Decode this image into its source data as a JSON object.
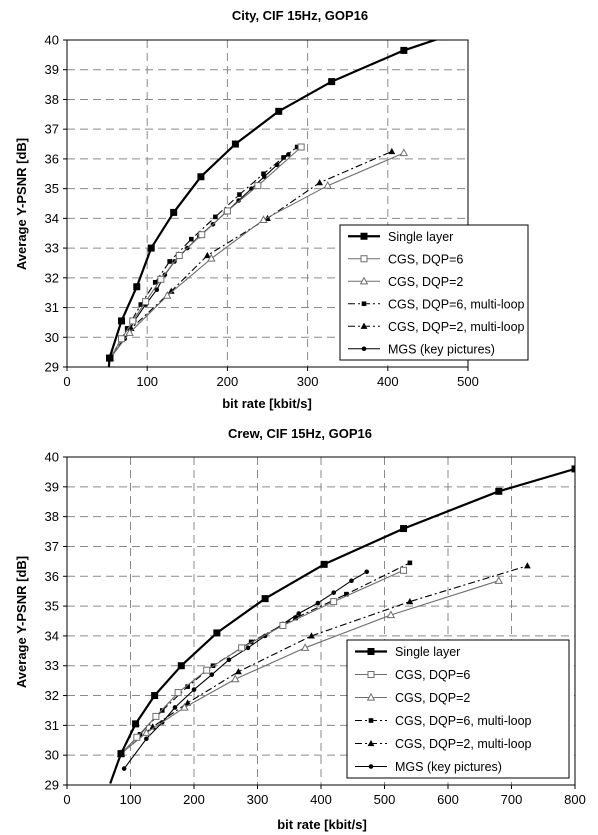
{
  "chart_data": [
    {
      "type": "line",
      "title": "City, CIF 15Hz, GOP16",
      "xlabel": "bit rate [kbit/s]",
      "ylabel": "Average Y-PSNR [dB]",
      "xlim": [
        0,
        500
      ],
      "ylim": [
        29,
        40
      ],
      "xticks": [
        "0",
        "100",
        "200",
        "300",
        "400",
        "500"
      ],
      "yticks": [
        "29",
        "30",
        "31",
        "32",
        "33",
        "34",
        "35",
        "36",
        "37",
        "38",
        "39",
        "40"
      ],
      "grid": true,
      "legend_position": "lower-right",
      "series": [
        {
          "name": "Single layer",
          "marker": "square-filled",
          "line": "solid-thick",
          "color": "#000000",
          "x": [
            52,
            53,
            68,
            87,
            105,
            133,
            167,
            210,
            264,
            330,
            420,
            470
          ],
          "y": [
            28.9,
            29.3,
            30.55,
            31.7,
            33.0,
            34.2,
            35.4,
            36.5,
            37.6,
            38.6,
            39.65,
            40.1
          ],
          "marker_count": 11
        },
        {
          "name": "CGS, DQP=6",
          "marker": "square-open",
          "line": "solid",
          "color": "#6e6e6e",
          "x": [
            54,
            68,
            82,
            98,
            117,
            140,
            168,
            200,
            238,
            292
          ],
          "y": [
            29.3,
            29.95,
            30.55,
            31.2,
            31.95,
            32.75,
            33.45,
            34.25,
            35.1,
            36.4
          ]
        },
        {
          "name": "CGS, DQP=2",
          "marker": "triangle-open",
          "line": "solid",
          "color": "#6e6e6e",
          "x": [
            54,
            78,
            125,
            180,
            245,
            325,
            420
          ],
          "y": [
            29.3,
            30.15,
            31.4,
            32.65,
            33.95,
            35.1,
            36.2
          ]
        },
        {
          "name": "CGS, DQP=6, multi-loop",
          "marker": "square-filled-small",
          "line": "dash-dot",
          "color": "#000000",
          "x": [
            54,
            75,
            92,
            110,
            128,
            155,
            185,
            215,
            245,
            270,
            287
          ],
          "y": [
            29.3,
            30.3,
            31.1,
            31.85,
            32.55,
            33.3,
            34.05,
            34.8,
            35.5,
            36.05,
            36.4
          ]
        },
        {
          "name": "CGS, DQP=2, multi-loop",
          "marker": "triangle-filled",
          "line": "dash-dot",
          "color": "#000000",
          "x": [
            54,
            80,
            130,
            175,
            250,
            315,
            405
          ],
          "y": [
            29.3,
            30.3,
            31.55,
            32.75,
            34.0,
            35.2,
            36.25
          ]
        },
        {
          "name": "MGS (key pictures)",
          "marker": "circle-filled",
          "line": "solid",
          "color": "#000000",
          "x": [
            54,
            72,
            84,
            98,
            112,
            122,
            134,
            150,
            165,
            182,
            198,
            214,
            230,
            246,
            262,
            276
          ],
          "y": [
            29.3,
            29.95,
            30.55,
            31.1,
            31.6,
            32.1,
            32.55,
            33.0,
            33.4,
            33.8,
            34.2,
            34.6,
            35.0,
            35.4,
            35.8,
            36.15
          ]
        }
      ]
    },
    {
      "type": "line",
      "title": "Crew, CIF 15Hz, GOP16",
      "xlabel": "bit rate [kbit/s]",
      "ylabel": "Average Y-PSNR [dB]",
      "xlim": [
        0,
        800
      ],
      "ylim": [
        29,
        40
      ],
      "xticks": [
        "0",
        "100",
        "200",
        "300",
        "400",
        "500",
        "600",
        "700",
        "800"
      ],
      "yticks": [
        "29",
        "30",
        "31",
        "32",
        "33",
        "34",
        "35",
        "36",
        "37",
        "38",
        "39",
        "40"
      ],
      "grid": true,
      "legend_position": "lower-right",
      "series": [
        {
          "name": "Single layer",
          "marker": "square-filled",
          "line": "solid-thick",
          "color": "#000000",
          "x": [
            68,
            85,
            108,
            138,
            180,
            236,
            312,
            405,
            530,
            680,
            800
          ],
          "y": [
            29.05,
            30.05,
            31.05,
            32.0,
            33.0,
            34.1,
            35.25,
            36.4,
            37.6,
            38.85,
            39.6
          ],
          "marker_count": 10
        },
        {
          "name": "CGS, DQP=6",
          "marker": "square-open",
          "line": "solid",
          "color": "#6e6e6e",
          "x": [
            85,
            110,
            140,
            175,
            220,
            275,
            340,
            420,
            530
          ],
          "y": [
            30.05,
            30.6,
            31.3,
            32.1,
            32.85,
            33.6,
            34.35,
            35.15,
            36.2
          ]
        },
        {
          "name": "CGS, DQP=2",
          "marker": "triangle-open",
          "line": "solid",
          "color": "#6e6e6e",
          "x": [
            85,
            125,
            185,
            265,
            375,
            510,
            680
          ],
          "y": [
            30.05,
            30.75,
            31.6,
            32.55,
            33.6,
            34.7,
            35.85
          ]
        },
        {
          "name": "CGS, DQP=6, multi-loop",
          "marker": "square-filled-small",
          "line": "dash-dot",
          "color": "#000000",
          "x": [
            85,
            115,
            150,
            190,
            230,
            290,
            360,
            440,
            540
          ],
          "y": [
            30.05,
            30.7,
            31.5,
            32.3,
            33.0,
            33.8,
            34.6,
            35.4,
            36.45
          ]
        },
        {
          "name": "CGS, DQP=2, multi-loop",
          "marker": "triangle-filled",
          "line": "dash-dot",
          "color": "#000000",
          "x": [
            85,
            135,
            190,
            270,
            385,
            540,
            725
          ],
          "y": [
            30.05,
            30.95,
            31.75,
            32.8,
            34.0,
            35.15,
            36.35
          ]
        },
        {
          "name": "MGS (key pictures)",
          "marker": "circle-filled",
          "line": "solid",
          "color": "#000000",
          "x": [
            90,
            125,
            150,
            170,
            200,
            228,
            255,
            285,
            312,
            340,
            365,
            395,
            420,
            448,
            472
          ],
          "y": [
            29.55,
            30.55,
            31.1,
            31.6,
            32.2,
            32.7,
            33.2,
            33.6,
            34.0,
            34.4,
            34.75,
            35.1,
            35.45,
            35.85,
            36.15
          ]
        }
      ]
    }
  ]
}
